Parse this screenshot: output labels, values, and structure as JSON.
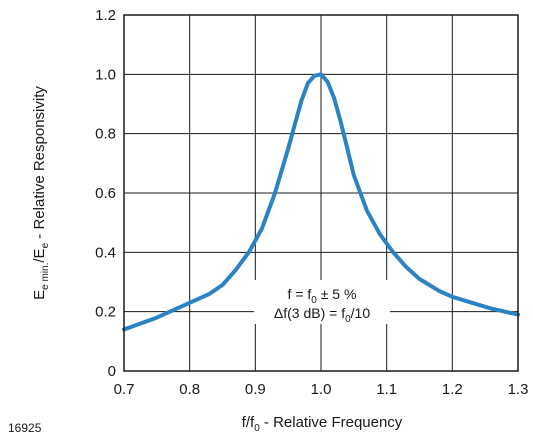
{
  "chart_data": {
    "type": "line",
    "xlabel": {
      "main": "f/f",
      "sub": "0",
      "rest": " - Relative Frequency"
    },
    "ylabel": {
      "pre": "E",
      "sub1": "e min.",
      "mid": "/E",
      "sub2": "e",
      "rest": " - Relative Responsivity"
    },
    "xlim": [
      0.7,
      1.3
    ],
    "ylim": [
      0,
      1.2
    ],
    "xticks": [
      0.7,
      0.8,
      0.9,
      1.0,
      1.1,
      1.2,
      1.3
    ],
    "xtick_labels": [
      "0.7",
      "0.8",
      "0.9",
      "1.0",
      "1.1",
      "1.2",
      "1.3"
    ],
    "yticks": [
      0,
      0.2,
      0.4,
      0.6,
      0.8,
      1.0,
      1.2
    ],
    "ytick_labels": [
      "0",
      "0.2",
      "0.4",
      "0.6",
      "0.8",
      "1.0",
      "1.2"
    ],
    "grid": true,
    "line_color": "#2b83c4",
    "annotation": {
      "line1": {
        "pre": "f = f",
        "sub": "0",
        "post": " ± 5 %"
      },
      "line2": {
        "pre": "Δf(3 dB) = f",
        "sub": "0",
        "post": "/10"
      }
    },
    "series": [
      {
        "x": [
          0.7,
          0.75,
          0.78,
          0.8,
          0.83,
          0.85,
          0.87,
          0.89,
          0.91,
          0.93,
          0.95,
          0.96,
          0.97,
          0.98,
          0.99,
          1.0,
          1.01,
          1.02,
          1.03,
          1.04,
          1.05,
          1.07,
          1.09,
          1.11,
          1.13,
          1.15,
          1.18,
          1.2,
          1.23,
          1.26,
          1.3
        ],
        "y": [
          0.14,
          0.18,
          0.21,
          0.23,
          0.26,
          0.29,
          0.34,
          0.4,
          0.48,
          0.6,
          0.75,
          0.83,
          0.91,
          0.97,
          0.995,
          1.0,
          0.975,
          0.92,
          0.84,
          0.75,
          0.66,
          0.54,
          0.46,
          0.4,
          0.35,
          0.31,
          0.27,
          0.25,
          0.23,
          0.21,
          0.19
        ]
      }
    ]
  },
  "figure_id": "16925"
}
